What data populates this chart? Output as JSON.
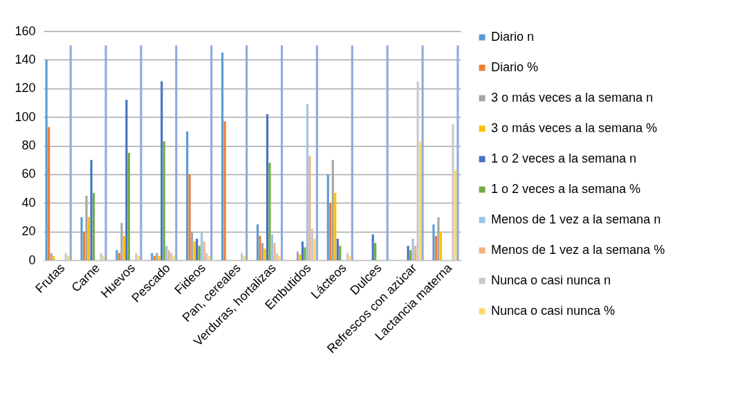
{
  "chart_data": {
    "type": "bar",
    "categories": [
      "Frutas",
      "Carne",
      "Huevos",
      "Pescado",
      "Fideos",
      "Pan, cereales",
      "Verduras, hortalizas",
      "Embutidos",
      "Lácteos",
      "Dulces",
      "Refrescos con azúcar",
      "Lactancia materna"
    ],
    "ylim": [
      0,
      160
    ],
    "yticks": [
      0,
      20,
      40,
      60,
      80,
      100,
      120,
      140,
      160
    ],
    "grid": "y",
    "legend": "right",
    "series": [
      {
        "name": "Diario n",
        "color": "#5b9bd5",
        "values": [
          140,
          30,
          7,
          5,
          90,
          145,
          25,
          0,
          60,
          0,
          0,
          25
        ]
      },
      {
        "name": "Diario %",
        "color": "#ed7d31",
        "values": [
          93,
          20,
          5,
          3,
          60,
          97,
          17,
          0,
          40,
          0,
          0,
          17
        ]
      },
      {
        "name": "3 o más veces a la semana n",
        "color": "#a5a5a5",
        "values": [
          5,
          45,
          26,
          5,
          20,
          0,
          12,
          6,
          70,
          0,
          0,
          30
        ]
      },
      {
        "name": "3 o más veces a la semana %",
        "color": "#ffc000",
        "values": [
          3,
          30,
          17,
          3,
          13,
          0,
          8,
          4,
          47,
          0,
          0,
          20
        ]
      },
      {
        "name": "1 o 2 veces a la semana n",
        "color": "#4472c4",
        "values": [
          0,
          70,
          112,
          125,
          15,
          0,
          102,
          13,
          15,
          18,
          10,
          0
        ]
      },
      {
        "name": "1 o 2 veces a la semana %",
        "color": "#70ad47",
        "values": [
          0,
          47,
          75,
          83,
          10,
          0,
          68,
          9,
          10,
          12,
          7,
          0
        ]
      },
      {
        "name": "Menos de 1 vez a la semana n",
        "color": "#9dc3e6",
        "values": [
          0,
          0,
          0,
          10,
          20,
          0,
          18,
          109,
          0,
          0,
          15,
          0
        ]
      },
      {
        "name": "Menos de 1 vez a la semana %",
        "color": "#f4b183",
        "values": [
          0,
          0,
          0,
          7,
          13,
          0,
          12,
          73,
          0,
          0,
          10,
          0
        ]
      },
      {
        "name": "Nunca o casi nunca n",
        "color": "#c9c9c9",
        "values": [
          5,
          5,
          5,
          5,
          5,
          5,
          5,
          22,
          5,
          0,
          125,
          95
        ]
      },
      {
        "name": "Nunca o casi nunca %",
        "color": "#ffd966",
        "values": [
          3,
          3,
          3,
          3,
          3,
          3,
          3,
          15,
          3,
          0,
          83,
          63
        ]
      },
      {
        "color": "#8faadc",
        "values": [
          150,
          150,
          150,
          150,
          150,
          150,
          150,
          150,
          150,
          150,
          150,
          150
        ]
      }
    ]
  }
}
